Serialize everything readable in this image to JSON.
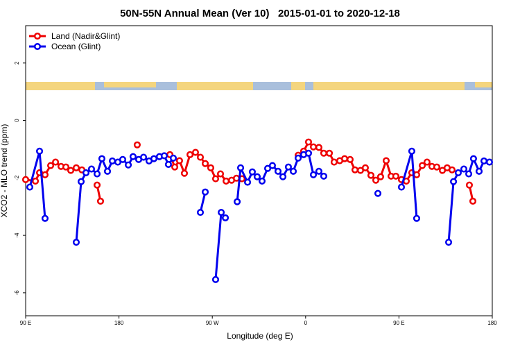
{
  "chart_data": {
    "type": "line",
    "title": "50N-55N Annual Mean (Ver 10)   2015-01-01 to 2020-12-18",
    "x_label": "Longitude (deg E)",
    "y_label": "XCO2 - MLO trend (ppm)",
    "xlim": [
      90,
      540
    ],
    "ylim": [
      -6.8,
      3.3
    ],
    "xticks": [
      {
        "value": 90,
        "label": "90 E"
      },
      180,
      {
        "value": 270,
        "label": "90 W"
      },
      {
        "value": 360,
        "label": "0"
      },
      {
        "value": 450,
        "label": "90 E"
      },
      {
        "value": 540,
        "label": "180"
      }
    ],
    "yticks": [
      -6,
      -4,
      -2,
      0,
      2
    ],
    "legend": "top-left",
    "series": [
      {
        "name": "Land (Nadir&Glint)",
        "color": "#ee0000",
        "x": [
          90,
          99.4,
          103.4,
          108.7,
          114.1,
          118.8,
          124.1,
          128.8,
          133.5,
          138.8,
          144.2,
          null,
          158.9,
          162.2,
          null,
          197.6,
          null,
          229.1,
          233.8,
          238.4,
          243.1,
          248.5,
          253.8,
          258.5,
          263.2,
          268.5,
          273.2,
          277.9,
          283.3,
          288.6,
          293.3,
          298.6,
          null,
          352.8,
          358.1,
          362.8,
          367.5,
          372.8,
          377.5,
          382.9,
          387.5,
          392.9,
          397.6,
          402.9,
          407.6,
          412.9,
          417.6,
          423,
          427.7,
          432.3,
          437.7,
          442.4,
          447,
          452.4,
          457.1,
          462.4,
          467.1,
          472.5,
          477.1,
          481.8,
          486.5,
          491.9,
          496.5,
          501.2,
          null,
          517.9,
          521.3
        ],
        "values": [
          -2.06,
          -2.11,
          -1.82,
          -1.89,
          -1.57,
          -1.45,
          -1.6,
          -1.62,
          -1.74,
          -1.65,
          -1.72,
          null,
          -2.25,
          -2.81,
          null,
          -0.85,
          null,
          -1.19,
          -1.62,
          -1.4,
          -1.84,
          -1.19,
          -1.11,
          -1.28,
          -1.5,
          -1.65,
          -2.03,
          -1.86,
          -2.11,
          -2.08,
          -2.01,
          -2.03,
          null,
          -1.21,
          -1.07,
          -0.75,
          -0.92,
          -0.94,
          -1.14,
          -1.14,
          -1.45,
          -1.4,
          -1.33,
          -1.36,
          -1.72,
          -1.74,
          -1.65,
          -1.91,
          -2.08,
          -1.96,
          -1.4,
          -1.94,
          -1.94,
          -2.06,
          -2.11,
          -1.82,
          -1.89,
          -1.57,
          -1.45,
          -1.6,
          -1.62,
          -1.74,
          -1.65,
          -1.72,
          null,
          -2.25,
          -2.81
        ]
      },
      {
        "name": "Ocean (Glint)",
        "color": "#0000ee",
        "x": [
          94,
          103.4,
          108.7,
          null,
          138.8,
          143.5,
          148.2,
          153.5,
          158.9,
          163.5,
          168.9,
          173.6,
          178.9,
          183.6,
          189,
          193.6,
          199,
          203.7,
          209,
          213.7,
          219,
          223.7,
          227.7,
          232.4,
          null,
          258.5,
          263.2,
          null,
          273.2,
          278.6,
          282.6,
          null,
          294,
          297.3,
          304,
          308.6,
          313.3,
          318,
          323.4,
          328,
          333.4,
          338.1,
          343.4,
          348.1,
          352.8,
          358.1,
          362.8,
          367.5,
          372.8,
          377.5,
          null,
          429.7,
          null,
          452.4,
          462.4,
          467.1,
          null,
          497.9,
          502.6,
          507.2,
          512.6,
          517.3,
          521.9,
          527.3,
          532,
          537.3
        ],
        "values": [
          -2.32,
          -1.07,
          -3.41,
          null,
          -4.24,
          -2.13,
          -1.82,
          -1.69,
          -1.86,
          -1.33,
          -1.77,
          -1.41,
          -1.45,
          -1.36,
          -1.55,
          -1.26,
          -1.36,
          -1.28,
          -1.41,
          -1.33,
          -1.26,
          -1.23,
          -1.53,
          -1.31,
          null,
          -3.2,
          -2.49,
          null,
          -5.54,
          -3.2,
          -3.39,
          null,
          -2.83,
          -1.65,
          -2.15,
          -1.79,
          -1.96,
          -2.11,
          -1.67,
          -1.57,
          -1.77,
          -1.96,
          -1.62,
          -1.77,
          -1.31,
          -1.19,
          -1.14,
          -1.89,
          -1.77,
          -1.94,
          null,
          -2.54,
          null,
          -2.32,
          -1.07,
          -3.41,
          null,
          -4.24,
          -2.13,
          -1.82,
          -1.69,
          -1.86,
          -1.33,
          -1.77,
          -1.41,
          -1.45
        ]
      }
    ]
  }
}
